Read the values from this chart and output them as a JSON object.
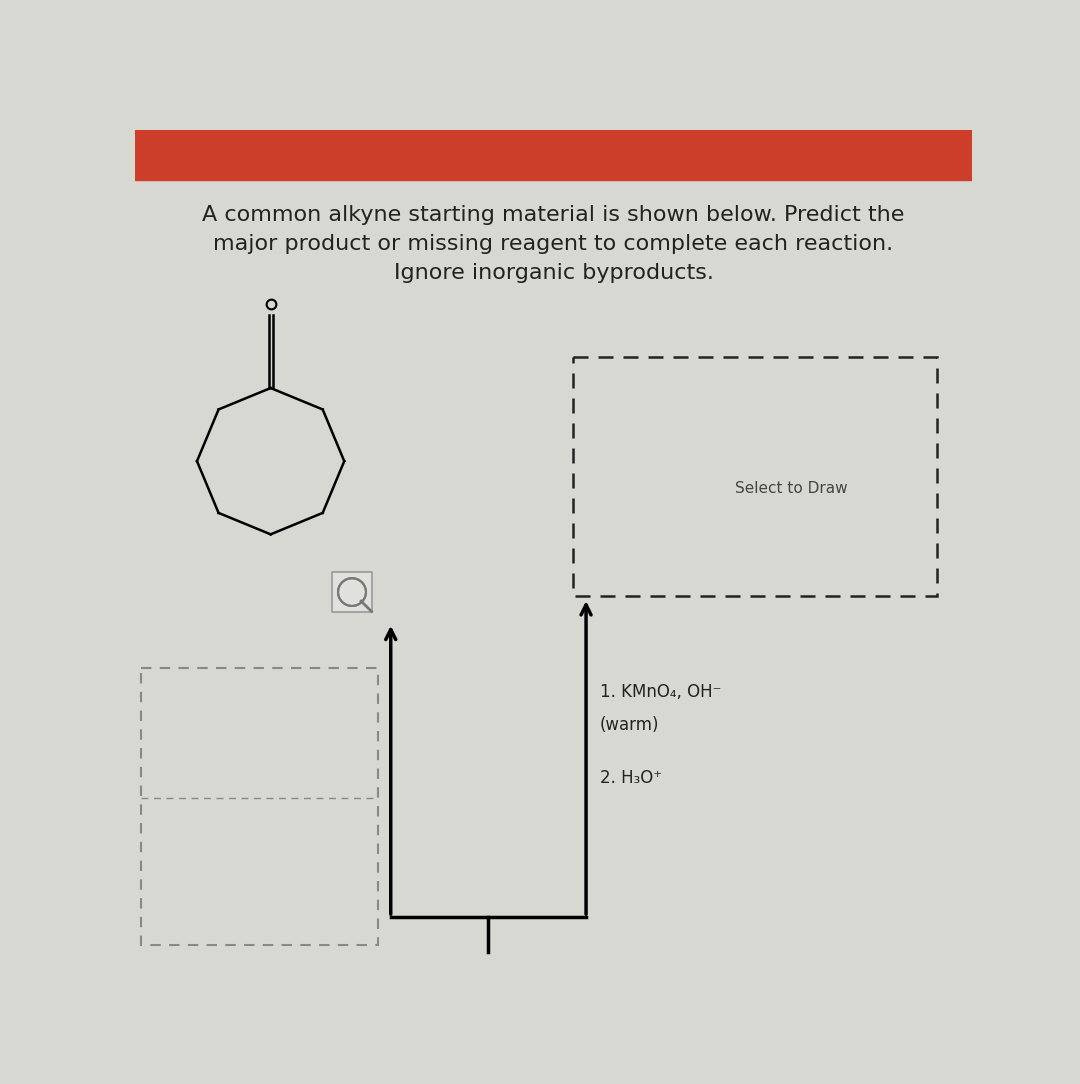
{
  "title_line1": "A common alkyne starting material is shown below. Predict the",
  "title_line2": "major product or missing reagent to complete each reaction.",
  "title_line3": "Ignore inorganic byproducts.",
  "header_color": "#cc3d2a",
  "bg_color": "#d8d8d2",
  "text_color": "#222222",
  "select_to_draw": "Select to Draw",
  "reagent_line1": "1. KMnO₄, OH⁻",
  "reagent_line2": "(warm)",
  "reagent_line3": "2. H₃O⁺",
  "title_fontsize": 16,
  "label_fontsize": 12,
  "small_fontsize": 11
}
